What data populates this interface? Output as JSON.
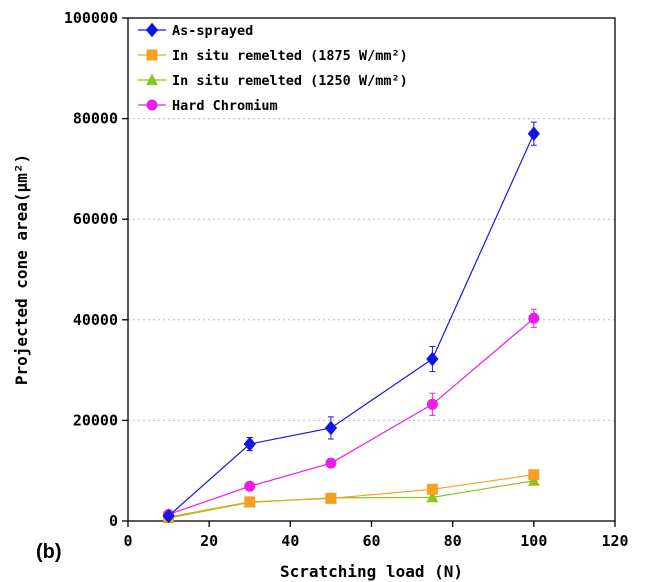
{
  "panel_label": "(b)",
  "chart_data": {
    "type": "line",
    "xlabel": "Scratching load (N)",
    "ylabel": "Projected cone area(μm²)",
    "xlim": [
      0,
      120
    ],
    "ylim": [
      0,
      100000
    ],
    "xticks": [
      0,
      20,
      40,
      60,
      80,
      100,
      120
    ],
    "yticks": [
      0,
      20000,
      40000,
      60000,
      80000,
      100000
    ],
    "grid": "horizontal dotted",
    "legend_position": "top-left",
    "x": [
      10,
      30,
      50,
      75,
      100
    ],
    "series": [
      {
        "name": "As-sprayed",
        "color": "#1515e0",
        "marker": "diamond",
        "values": [
          1000,
          15300,
          18500,
          32200,
          77000
        ],
        "errors": [
          300,
          1300,
          2200,
          2500,
          2300
        ]
      },
      {
        "name": "In situ remelted (1875 W/mm²)",
        "color": "#f5a020",
        "marker": "square",
        "values": [
          800,
          3800,
          4500,
          6300,
          9200
        ],
        "errors": [
          0,
          0,
          0,
          0,
          0
        ]
      },
      {
        "name": "In situ remelted (1250 W/mm²)",
        "color": "#8cc520",
        "marker": "triangle",
        "values": [
          600,
          3700,
          4600,
          4700,
          8000
        ],
        "errors": [
          0,
          0,
          0,
          0,
          0
        ]
      },
      {
        "name": "Hard Chromium",
        "color": "#ee1ce8",
        "marker": "circle",
        "values": [
          1300,
          6900,
          11500,
          23200,
          40300
        ],
        "errors": [
          0,
          0,
          0,
          2200,
          1800
        ]
      }
    ]
  }
}
